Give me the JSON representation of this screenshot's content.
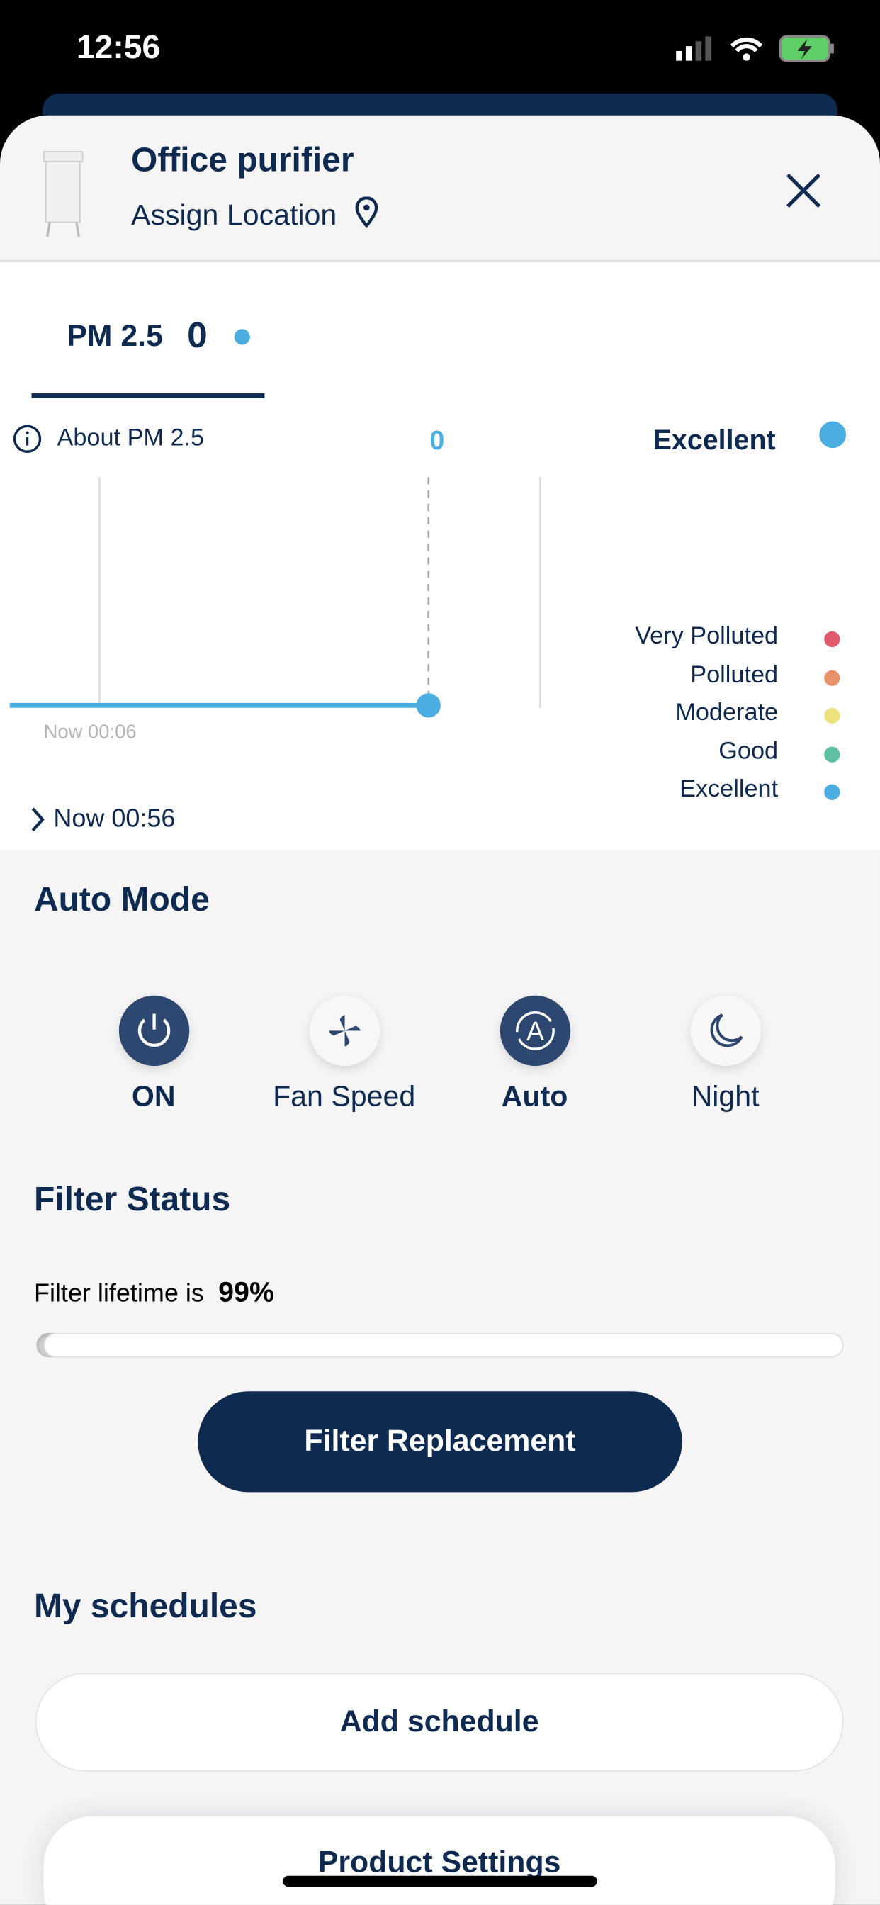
{
  "status_bar": {
    "time": "12:56"
  },
  "header": {
    "title": "Office purifier",
    "subtitle": "Assign Location"
  },
  "tab": {
    "label": "PM 2.5",
    "value": "0"
  },
  "reading": {
    "about_label": "About PM 2.5",
    "current_value": "0",
    "quality": "Excellent",
    "quality_color": "#4aaee0"
  },
  "legend": [
    {
      "label": "Very Polluted",
      "color": "#e05a6b"
    },
    {
      "label": "Polluted",
      "color": "#e8916b"
    },
    {
      "label": "Moderate",
      "color": "#ece27a"
    },
    {
      "label": "Good",
      "color": "#5ebfa4"
    },
    {
      "label": "Excellent",
      "color": "#4aaee0"
    }
  ],
  "chart_data": {
    "type": "line",
    "x": [
      "Now 00:06",
      "Now 00:56"
    ],
    "series": [
      {
        "values": [
          0,
          0
        ]
      }
    ],
    "start_label": "Now 00:06"
  },
  "timeline": {
    "label": "Now 00:56"
  },
  "auto_mode": {
    "title": "Auto Mode",
    "controls": [
      {
        "label": "ON",
        "active": true
      },
      {
        "label": "Fan Speed",
        "active": false
      },
      {
        "label": "Auto",
        "active": true
      },
      {
        "label": "Night",
        "active": false
      }
    ]
  },
  "filter": {
    "title": "Filter Status",
    "lifetime_text": "Filter lifetime is",
    "lifetime_value": "99%",
    "percent": 99,
    "button": "Filter Replacement"
  },
  "schedules": {
    "title": "My schedules",
    "add_button": "Add schedule"
  },
  "product_settings": {
    "label": "Product Settings"
  }
}
